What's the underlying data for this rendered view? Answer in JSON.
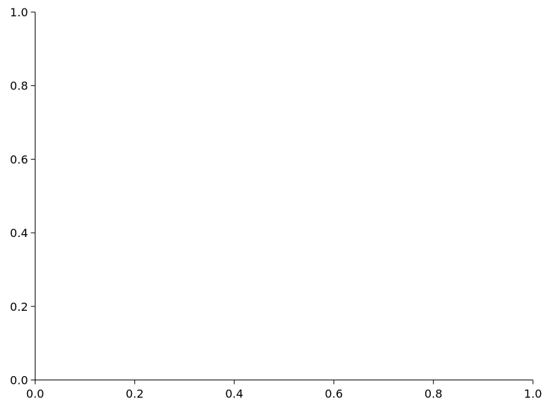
{
  "chart_data": {
    "type": "line",
    "title": "",
    "xlabel": "",
    "ylabel": "",
    "xlim": [
      0,
      1
    ],
    "ylim": [
      0,
      1
    ],
    "x_ticks": [
      "0.0",
      "0.2",
      "0.4",
      "0.6",
      "0.8",
      "1.0"
    ],
    "y_ticks": [
      "0.0",
      "0.2",
      "0.4",
      "0.6",
      "0.8",
      "1.0"
    ],
    "series": [],
    "grid": false,
    "spines": [
      "left",
      "bottom"
    ],
    "colors": {
      "axis": "#000000",
      "background": "#ffffff"
    }
  }
}
